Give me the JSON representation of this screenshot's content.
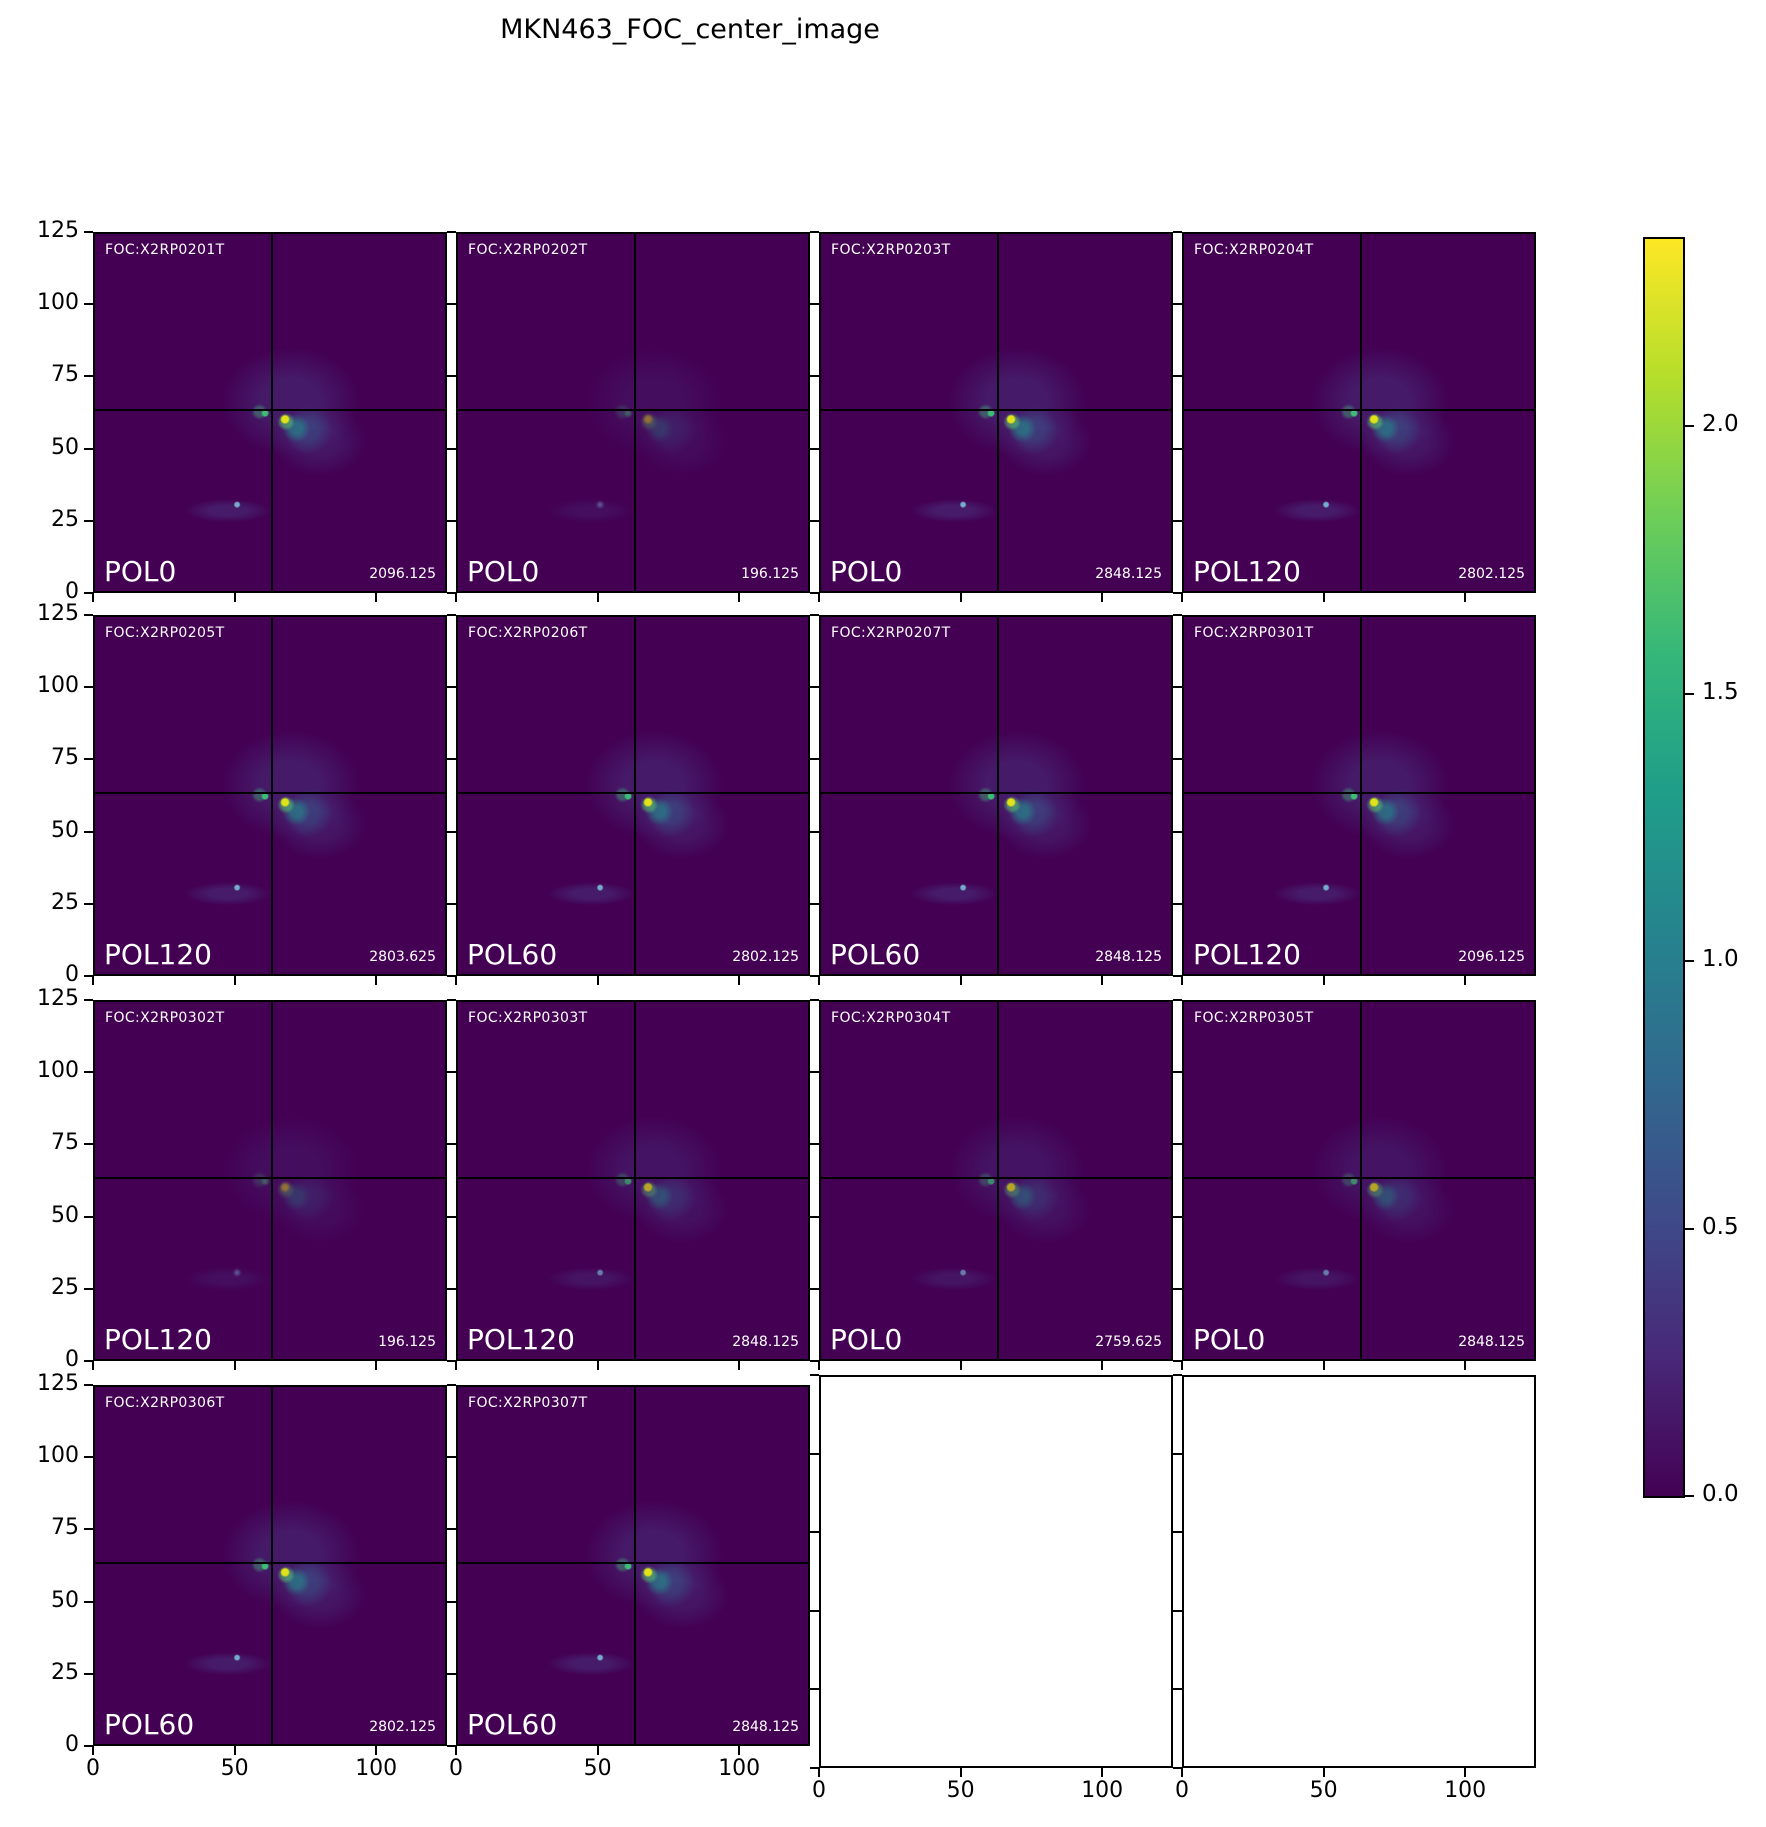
{
  "title": "MKN463_FOC_center_image",
  "chart_data": {
    "type": "heatmap",
    "title": "MKN463_FOC_center_image",
    "subtitle": "",
    "colormap": "viridis",
    "grid": "4 rows x 4 columns, 14 image panels + 2 empty axes",
    "x_range": [
      0,
      125
    ],
    "y_range": [
      0,
      125
    ],
    "x_ticks": [
      "0",
      "50",
      "100"
    ],
    "y_ticks": [
      "125",
      "100",
      "75",
      "50",
      "25",
      "0"
    ],
    "crosshair_xy": [
      63,
      63
    ],
    "colorbar": {
      "tick_labels": [
        "2.0",
        "1.5",
        "1.0",
        "0.5",
        "0.0"
      ],
      "tick_values": [
        2.0,
        1.5,
        1.0,
        0.5,
        0.0
      ],
      "vmin": 0.0,
      "vmax": 2.35,
      "position": "right"
    },
    "panels": [
      {
        "foc": "FOC:X2RP0201T",
        "pol": "POL0",
        "value": "2096.125",
        "variant": "bright",
        "empty": false
      },
      {
        "foc": "FOC:X2RP0202T",
        "pol": "POL0",
        "value": "196.125",
        "variant": "faint",
        "empty": false
      },
      {
        "foc": "FOC:X2RP0203T",
        "pol": "POL0",
        "value": "2848.125",
        "variant": "bright",
        "empty": false
      },
      {
        "foc": "FOC:X2RP0204T",
        "pol": "POL120",
        "value": "2802.125",
        "variant": "bright",
        "empty": false
      },
      {
        "foc": "FOC:X2RP0205T",
        "pol": "POL120",
        "value": "2803.625",
        "variant": "bright",
        "empty": false
      },
      {
        "foc": "FOC:X2RP0206T",
        "pol": "POL60",
        "value": "2802.125",
        "variant": "bright",
        "empty": false
      },
      {
        "foc": "FOC:X2RP0207T",
        "pol": "POL60",
        "value": "2848.125",
        "variant": "bright",
        "empty": false
      },
      {
        "foc": "FOC:X2RP0301T",
        "pol": "POL120",
        "value": "2096.125",
        "variant": "bright",
        "empty": false
      },
      {
        "foc": "FOC:X2RP0302T",
        "pol": "POL120",
        "value": "196.125",
        "variant": "faint",
        "empty": false
      },
      {
        "foc": "FOC:X2RP0303T",
        "pol": "POL120",
        "value": "2848.125",
        "variant": "soft",
        "empty": false
      },
      {
        "foc": "FOC:X2RP0304T",
        "pol": "POL0",
        "value": "2759.625",
        "variant": "soft",
        "empty": false
      },
      {
        "foc": "FOC:X2RP0305T",
        "pol": "POL0",
        "value": "2848.125",
        "variant": "soft",
        "empty": false
      },
      {
        "foc": "FOC:X2RP0306T",
        "pol": "POL60",
        "value": "2802.125",
        "variant": "bright",
        "empty": false
      },
      {
        "foc": "FOC:X2RP0307T",
        "pol": "POL60",
        "value": "2848.125",
        "variant": "bright",
        "empty": false
      },
      {
        "empty": true
      },
      {
        "empty": true
      }
    ]
  }
}
